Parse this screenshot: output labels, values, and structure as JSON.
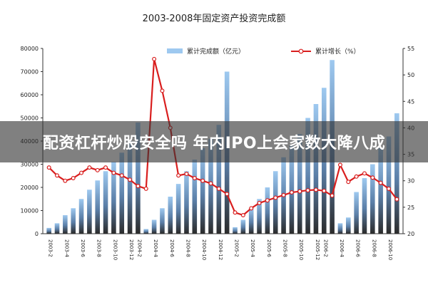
{
  "colors": {
    "bar_top": "#9ec9f0",
    "bar_bottom": "#2b2b2b",
    "line": "#d91e1e",
    "axis": "#333333",
    "banner_bg": "#323232",
    "banner_text": "#ffffff"
  },
  "banner": {
    "text": "配资杠杆炒股安全吗 年内IPO上会家数大降八成"
  },
  "chart_data": {
    "type": "bar",
    "title": "2003-2008年固定资产投资完成额",
    "legend": [
      "累计完成额（亿元）",
      "累计增长（%）"
    ],
    "legend_position": "top",
    "grid": false,
    "left_axis": {
      "min": 0,
      "max": 80000,
      "ticks": [
        0,
        10000,
        20000,
        30000,
        40000,
        50000,
        60000,
        70000,
        80000
      ]
    },
    "right_axis": {
      "min": 20,
      "max": 55,
      "ticks": [
        20,
        25,
        30,
        35,
        40,
        45,
        50,
        55
      ]
    },
    "x_tick_labels": [
      "2003-2",
      "2003-4",
      "2003-6",
      "2003-8",
      "2003-10",
      "2003-12",
      "2004-2",
      "2004-4",
      "2004-6",
      "2004-8",
      "2004-10",
      "2004-12",
      "2005-2",
      "2005-4",
      "2005-6",
      "2005-8",
      "2005-10",
      "2005-12",
      "2006-2",
      "2006-4",
      "2006-6",
      "2006-8",
      "2006-10"
    ],
    "series": [
      {
        "name": "累计完成额（亿元）",
        "type": "bar",
        "axis": "left",
        "values": [
          2500,
          4500,
          8000,
          11000,
          15000,
          19000,
          23000,
          27000,
          31000,
          35000,
          40000,
          48000,
          2000,
          6000,
          11000,
          16000,
          21500,
          27000,
          32000,
          37000,
          41000,
          47000,
          70000,
          2800,
          6000,
          11000,
          15000,
          20000,
          27000,
          33000,
          38000,
          43000,
          50000,
          56000,
          63000,
          75000,
          4500,
          7000,
          18000,
          24000,
          30000,
          37000,
          42000,
          52000
        ]
      },
      {
        "name": "累计增长（%）",
        "type": "line",
        "axis": "right",
        "values": [
          32.5,
          31,
          30,
          30.5,
          31.5,
          32.5,
          32,
          32.5,
          31.5,
          31,
          30.2,
          29,
          28.5,
          53,
          47,
          40,
          31,
          31.3,
          30.5,
          30,
          29.5,
          28.5,
          27.5,
          24,
          23.5,
          24.8,
          25.8,
          26.3,
          26.8,
          27.3,
          27.8,
          28,
          28.2,
          28.3,
          28.1,
          27.2,
          33,
          29.8,
          30.8,
          31.4,
          30.6,
          29.6,
          28.5,
          26.5
        ]
      }
    ]
  }
}
